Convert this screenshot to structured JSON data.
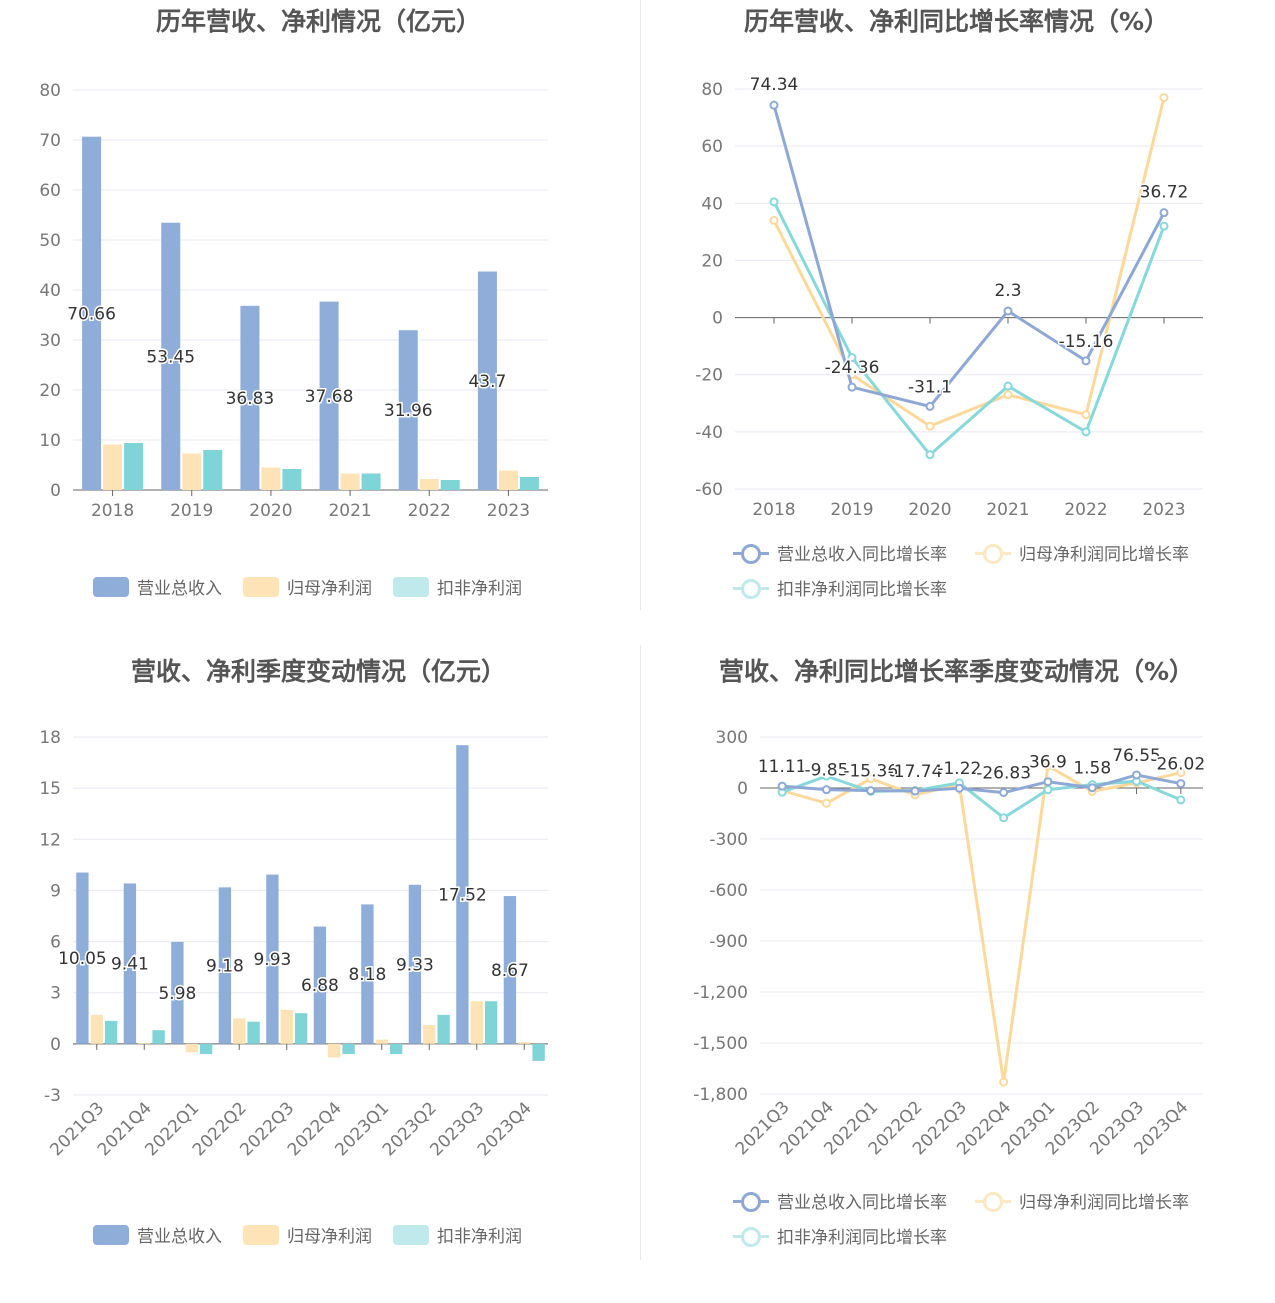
{
  "colors": {
    "revenue": "#8eadd9",
    "net_profit": "#fde3b5",
    "deducted_profit": "#7fd4d8",
    "revenue_line": "#8ea8d6",
    "net_profit_line": "#fcd99a",
    "deducted_line": "#86d8da",
    "grid": "#e6e8f0",
    "axis": "#666666",
    "tick_text": "#777777"
  },
  "legend_bar": [
    "营业总收入",
    "归母净利润",
    "扣非净利润"
  ],
  "legend_line": [
    "营业总收入同比增长率",
    "归母净利润同比增长率",
    "扣非净利润同比增长率"
  ],
  "chart_data": [
    {
      "id": "annual_values",
      "type": "bar",
      "title": "历年营收、净利情况（亿元）",
      "categories": [
        "2018",
        "2019",
        "2020",
        "2021",
        "2022",
        "2023"
      ],
      "series": [
        {
          "name": "营业总收入",
          "values": [
            70.66,
            53.45,
            36.83,
            37.68,
            31.96,
            43.7
          ],
          "labels": [
            "70.66",
            "53.45",
            "36.83",
            "37.68",
            "31.96",
            "43.7"
          ]
        },
        {
          "name": "归母净利润",
          "values": [
            9.1,
            7.3,
            4.5,
            3.3,
            2.2,
            3.9
          ]
        },
        {
          "name": "扣非净利润",
          "values": [
            9.4,
            8.0,
            4.2,
            3.3,
            2.0,
            2.6
          ]
        }
      ],
      "ylim": [
        0,
        80
      ],
      "yticks": [
        "0",
        "10",
        "20",
        "30",
        "40",
        "50",
        "60",
        "70",
        "80"
      ],
      "grid": true,
      "legend": "bottom"
    },
    {
      "id": "annual_growth",
      "type": "line",
      "title": "历年营收、净利同比增长率情况（%）",
      "categories": [
        "2018",
        "2019",
        "2020",
        "2021",
        "2022",
        "2023"
      ],
      "series": [
        {
          "name": "营业总收入同比增长率",
          "values": [
            74.34,
            -24.36,
            -31.1,
            2.3,
            -15.16,
            36.72
          ],
          "labels": [
            "74.34",
            "-24.36",
            "-31.1",
            "2.3",
            "-15.16",
            "36.72"
          ]
        },
        {
          "name": "归母净利润同比增长率",
          "values": [
            34,
            -20,
            -38,
            -27,
            -34,
            77
          ]
        },
        {
          "name": "扣非净利润同比增长率",
          "values": [
            40.5,
            -14,
            -48,
            -24,
            -40,
            32
          ]
        }
      ],
      "ylim": [
        -60,
        80
      ],
      "yticks": [
        "-60",
        "-40",
        "-20",
        "0",
        "20",
        "40",
        "60",
        "80"
      ],
      "grid": true,
      "legend": "bottom"
    },
    {
      "id": "quarterly_values",
      "type": "bar",
      "title": "营收、净利季度变动情况（亿元）",
      "categories": [
        "2021Q3",
        "2021Q4",
        "2022Q1",
        "2022Q2",
        "2022Q3",
        "2022Q4",
        "2023Q1",
        "2023Q2",
        "2023Q3",
        "2023Q4"
      ],
      "series": [
        {
          "name": "营业总收入",
          "values": [
            10.05,
            9.41,
            5.98,
            9.18,
            9.93,
            6.88,
            8.18,
            9.33,
            17.52,
            8.67
          ],
          "labels": [
            "10.05",
            "9.41",
            "5.98",
            "9.18",
            "9.93",
            "6.88",
            "8.18",
            "9.33",
            "17.52",
            "8.67"
          ]
        },
        {
          "name": "归母净利润",
          "values": [
            1.7,
            0.05,
            -0.5,
            1.5,
            2.0,
            -0.8,
            0.25,
            1.1,
            2.5,
            0.1
          ]
        },
        {
          "name": "扣非净利润",
          "values": [
            1.35,
            0.8,
            -0.6,
            1.3,
            1.8,
            -0.6,
            -0.6,
            1.7,
            2.5,
            -1.0
          ]
        }
      ],
      "ylim": [
        -3,
        18
      ],
      "yticks": [
        "-3",
        "0",
        "3",
        "6",
        "9",
        "12",
        "15",
        "18"
      ],
      "grid": true,
      "legend": "bottom"
    },
    {
      "id": "quarterly_growth",
      "type": "line",
      "title": "营收、净利同比增长率季度变动情况（%）",
      "categories": [
        "2021Q3",
        "2021Q4",
        "2022Q1",
        "2022Q2",
        "2022Q3",
        "2022Q4",
        "2023Q1",
        "2023Q2",
        "2023Q3",
        "2023Q4"
      ],
      "series": [
        {
          "name": "营业总收入同比增长率",
          "values": [
            11.11,
            -9.85,
            -15.36,
            -17.74,
            -1.22,
            -26.83,
            36.9,
            1.58,
            76.55,
            26.02
          ],
          "labels": [
            "11.11",
            "-9.85",
            "-15.36",
            "-17.74",
            "-1.22",
            "-26.83",
            "36.9",
            "1.58",
            "76.55",
            "26.02"
          ]
        },
        {
          "name": "归母净利润同比增长率",
          "values": [
            -15,
            -90,
            55,
            -40,
            20,
            -1730,
            130,
            -20,
            30,
            90
          ]
        },
        {
          "name": "扣非净利润同比增长率",
          "values": [
            -25,
            70,
            -20,
            -15,
            30,
            -175,
            -10,
            20,
            40,
            -70
          ]
        }
      ],
      "ylim": [
        -1800,
        300
      ],
      "yticks": [
        "-1,800",
        "-1,500",
        "-1,200",
        "-900",
        "-600",
        "-300",
        "0",
        "300"
      ],
      "grid": true,
      "legend": "bottom"
    }
  ]
}
